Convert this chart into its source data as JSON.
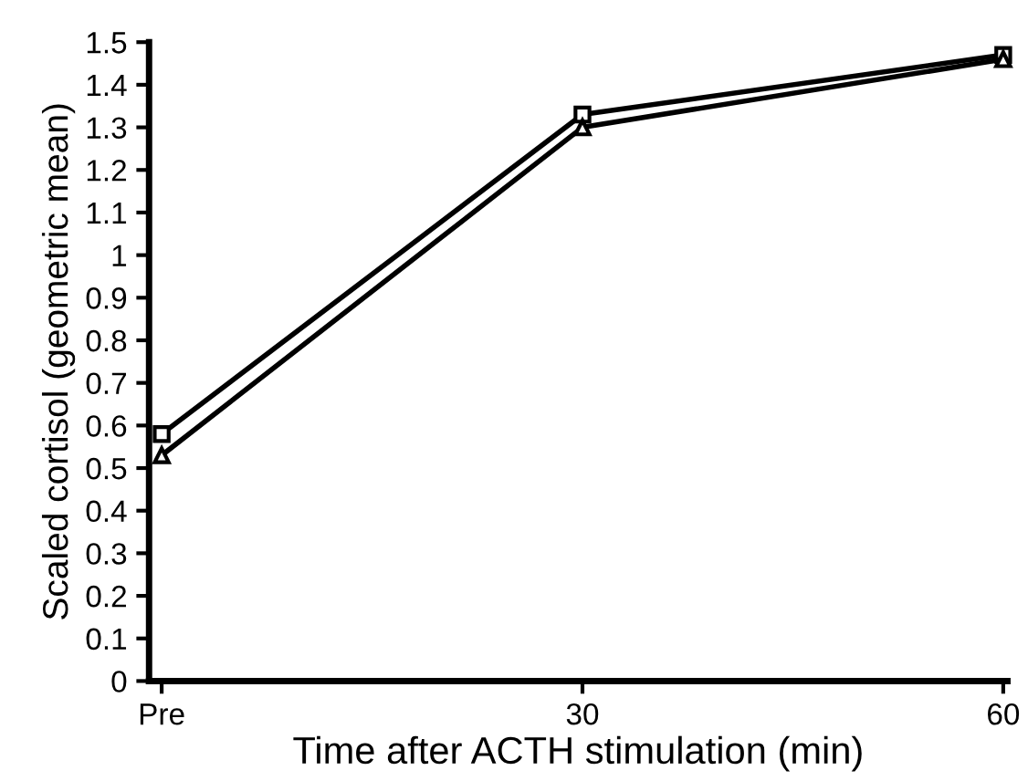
{
  "chart_data": {
    "type": "line",
    "xlabel": "Time after ACTH stimulation (min)",
    "ylabel": "Scaled cortisol (geometric mean)",
    "categories": [
      "Pre",
      "30",
      "60"
    ],
    "series": [
      {
        "color": "#000000",
        "marker": "square",
        "values": [
          0.58,
          1.33,
          1.47
        ]
      },
      {
        "color": "#000000",
        "marker": "triangle",
        "values": [
          0.53,
          1.3,
          1.46
        ]
      }
    ],
    "ylim": [
      0,
      1.5
    ],
    "yticks": [
      0,
      0.1,
      0.2,
      0.3,
      0.4,
      0.5,
      0.6,
      0.7,
      0.8,
      0.9,
      1,
      1.1,
      1.2,
      1.3,
      1.4,
      1.5
    ],
    "grid": false,
    "line_style": "solid"
  }
}
